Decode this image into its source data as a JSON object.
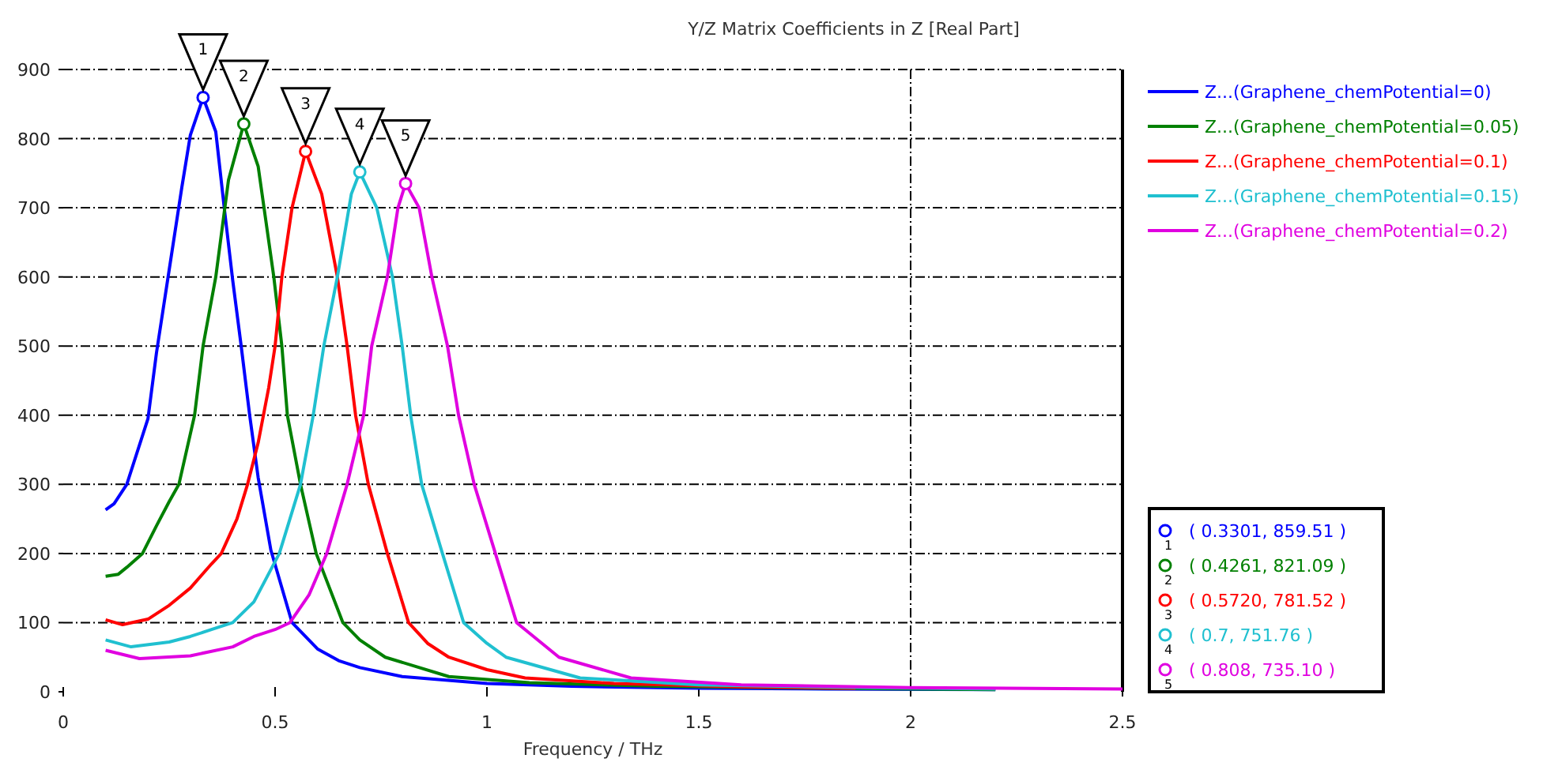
{
  "chart_data": {
    "type": "line",
    "title": "Y/Z Matrix Coefficients in Z [Real Part]",
    "xlabel": "Frequency / THz",
    "xlim": [
      0,
      2.5
    ],
    "xticks": [
      0,
      0.5,
      1,
      1.5,
      2,
      2.5
    ],
    "ylim": [
      0,
      900
    ],
    "yticks": [
      0,
      100,
      200,
      300,
      400,
      500,
      600,
      700,
      800,
      900
    ],
    "grid": "y",
    "legend": "top right",
    "marker": "none",
    "line_style": "solid",
    "ref_lines": [
      {
        "axis": "x",
        "value": 2,
        "label": null
      }
    ],
    "series": [
      {
        "name": "Z...(Graphene_chemPotential=0)",
        "color": "#0000ff",
        "x": [
          0.1,
          0.12,
          0.15,
          0.2,
          0.22,
          0.25,
          0.28,
          0.3,
          0.3301,
          0.36,
          0.38,
          0.4,
          0.42,
          0.44,
          0.46,
          0.49,
          0.54,
          0.6,
          0.65,
          0.7,
          0.8,
          1,
          1.2,
          1.5,
          1.8,
          2.2
        ],
        "values": [
          263,
          272,
          300,
          395,
          490,
          610,
          730,
          805,
          859.51,
          810,
          700,
          595,
          500,
          400,
          310,
          205,
          100,
          62,
          45,
          35,
          22,
          12,
          8,
          5,
          4,
          3
        ]
      },
      {
        "name": "Z...(Graphene_chemPotential=0.05)",
        "color": "#008000",
        "x": [
          0.1,
          0.13,
          0.15,
          0.187,
          0.22,
          0.25,
          0.273,
          0.31,
          0.33,
          0.36,
          0.39,
          0.4261,
          0.46,
          0.497,
          0.516,
          0.529,
          0.56,
          0.597,
          0.66,
          0.7,
          0.76,
          0.91,
          1.1,
          1.4,
          1.8,
          2.2
        ],
        "values": [
          167,
          170,
          180,
          200,
          240,
          275,
          300,
          400,
          500,
          600,
          740,
          821.09,
          760,
          600,
          500,
          400,
          300,
          200,
          100,
          75,
          50,
          22,
          13,
          8,
          5,
          3
        ]
      },
      {
        "name": "Z...(Graphene_chemPotential=0.1)",
        "color": "#ff0000",
        "x": [
          0.1,
          0.14,
          0.2,
          0.25,
          0.3,
          0.35,
          0.373,
          0.41,
          0.435,
          0.46,
          0.485,
          0.5,
          0.516,
          0.54,
          0.572,
          0.61,
          0.647,
          0.67,
          0.69,
          0.72,
          0.765,
          0.815,
          0.86,
          0.91,
          1,
          1.09,
          1.3,
          1.6,
          1.87
        ],
        "values": [
          104,
          97,
          105,
          125,
          150,
          185,
          200,
          250,
          300,
          360,
          440,
          500,
          600,
          700,
          781.52,
          720,
          600,
          500,
          400,
          300,
          200,
          100,
          70,
          50,
          32,
          20,
          12,
          7,
          5
        ]
      },
      {
        "name": "Z...(Graphene_chemPotential=0.15)",
        "color": "#20c0d0",
        "x": [
          0.1,
          0.16,
          0.25,
          0.3,
          0.35,
          0.4,
          0.45,
          0.51,
          0.56,
          0.59,
          0.615,
          0.647,
          0.68,
          0.7,
          0.74,
          0.777,
          0.8,
          0.82,
          0.846,
          0.895,
          0.945,
          1,
          1.045,
          1.22,
          1.5,
          1.9,
          2.2
        ],
        "values": [
          75,
          65,
          72,
          80,
          90,
          100,
          130,
          200,
          300,
          400,
          500,
          600,
          720,
          751.76,
          700,
          600,
          500,
          400,
          300,
          200,
          100,
          70,
          50,
          20,
          10,
          6,
          4
        ]
      },
      {
        "name": "Z...(Graphene_chemPotential=0.2)",
        "color": "#e000e0",
        "x": [
          0.1,
          0.18,
          0.3,
          0.4,
          0.45,
          0.5,
          0.535,
          0.58,
          0.622,
          0.67,
          0.709,
          0.728,
          0.765,
          0.79,
          0.808,
          0.84,
          0.87,
          0.907,
          0.933,
          0.97,
          1.02,
          1.07,
          1.17,
          1.34,
          1.6,
          2,
          2.5
        ],
        "values": [
          60,
          48,
          52,
          65,
          80,
          90,
          100,
          140,
          200,
          300,
          400,
          500,
          600,
          700,
          735.1,
          700,
          600,
          500,
          400,
          300,
          200,
          100,
          50,
          20,
          10,
          6,
          4
        ]
      }
    ],
    "annotations": [
      {
        "text": "1",
        "x": 0.3301,
        "y": 859.51
      },
      {
        "text": "2",
        "x": 0.4261,
        "y": 821.09
      },
      {
        "text": "3",
        "x": 0.572,
        "y": 781.52
      },
      {
        "text": "4",
        "x": 0.7,
        "y": 751.76
      },
      {
        "text": "5",
        "x": 0.808,
        "y": 735.1
      },
      "( 0.3301, 859.51 )",
      "( 0.4261, 821.09 )",
      "( 0.5720, 781.52 )",
      "( 0.7, 751.76 )",
      "( 0.808, 735.10 )"
    ]
  }
}
